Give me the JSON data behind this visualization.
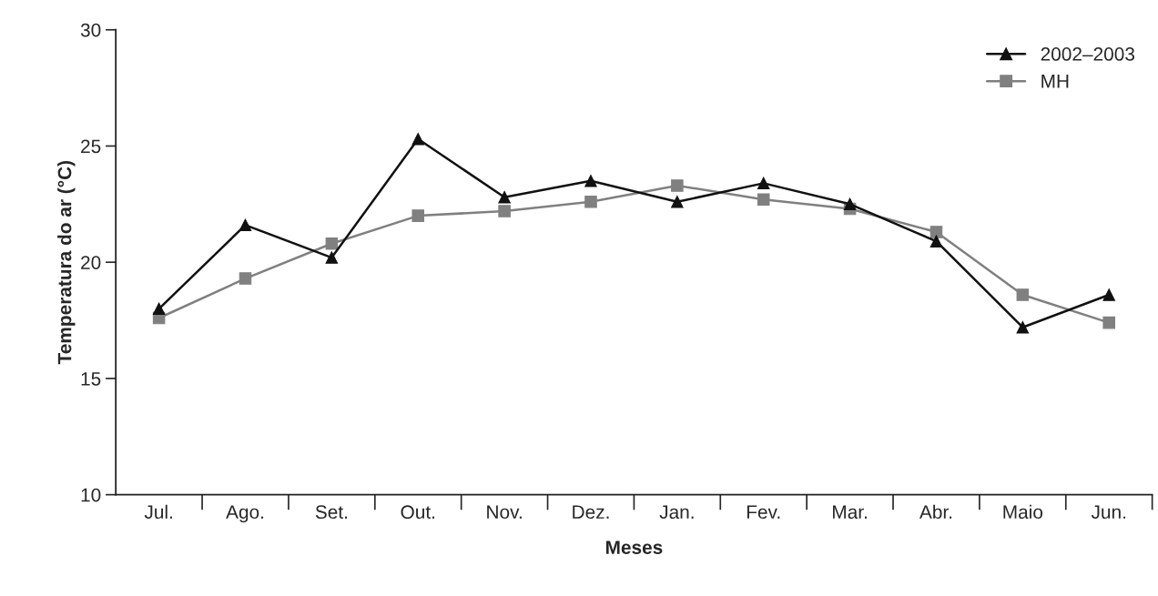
{
  "chart_data": {
    "type": "line",
    "xlabel": "Meses",
    "ylabel": "Temperatura do ar (°C)",
    "categories": [
      "Jul.",
      "Ago.",
      "Set.",
      "Out.",
      "Nov.",
      "Dez.",
      "Jan.",
      "Fev.",
      "Mar.",
      "Abr.",
      "Maio",
      "Jun."
    ],
    "series": [
      {
        "name": "2002–2003",
        "color": "#111111",
        "marker": "triangle",
        "values": [
          18.0,
          21.6,
          20.2,
          25.3,
          22.8,
          23.5,
          22.6,
          23.4,
          22.5,
          20.9,
          17.2,
          18.6
        ]
      },
      {
        "name": "MH",
        "color": "#808080",
        "marker": "square",
        "values": [
          17.6,
          19.3,
          20.8,
          22.0,
          22.2,
          22.6,
          23.3,
          22.7,
          22.3,
          21.3,
          18.6,
          17.4
        ]
      }
    ],
    "ylim": [
      10,
      30
    ],
    "yticks": [
      10,
      15,
      20,
      25,
      30
    ],
    "grid": false,
    "legend": "top right"
  }
}
